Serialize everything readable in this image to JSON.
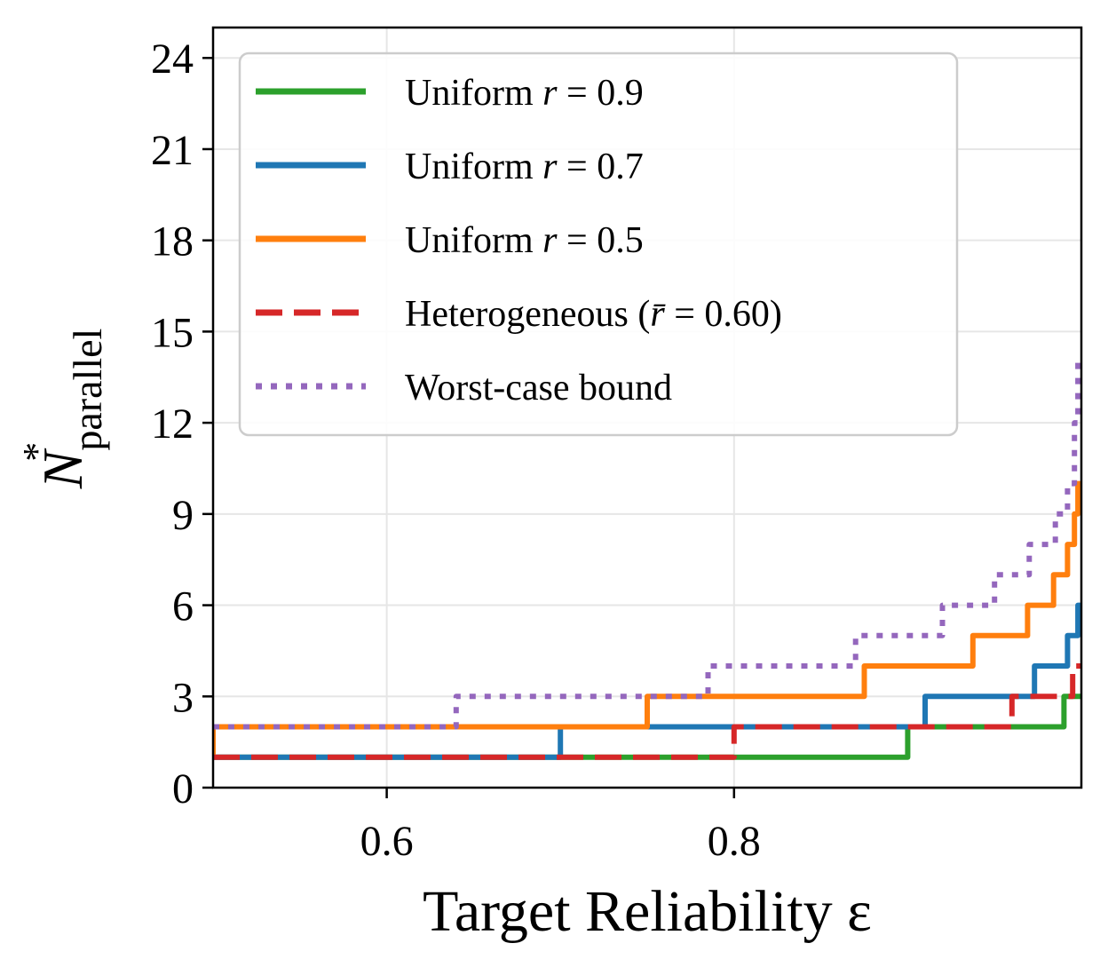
{
  "chart_data": {
    "type": "line",
    "title": "",
    "xlabel": "Target Reliability ε",
    "ylabel": "N*parallel",
    "ylabel_main": "N",
    "ylabel_sup": "*",
    "ylabel_sub": "parallel",
    "xlim": [
      0.5,
      1.0
    ],
    "ylim": [
      0,
      25
    ],
    "x_ticks": [
      0.6,
      0.8
    ],
    "x_tick_labels": [
      "0.6",
      "0.8"
    ],
    "y_ticks": [
      0,
      3,
      6,
      9,
      12,
      15,
      18,
      21,
      24
    ],
    "y_tick_labels": [
      "0",
      "3",
      "6",
      "9",
      "12",
      "15",
      "18",
      "21",
      "24"
    ],
    "grid": true,
    "legend_position": "top-left",
    "series": [
      {
        "name": "Uniform r = 0.9",
        "legend_main": "Uniform ",
        "legend_var": "r",
        "legend_rest": " = 0.9",
        "color": "#2ca02c",
        "style": "solid",
        "x": [
          0.5,
          0.9,
          0.9,
          0.99,
          0.99,
          1.0
        ],
        "y": [
          1,
          1,
          2,
          2,
          3,
          3
        ]
      },
      {
        "name": "Uniform r = 0.7",
        "legend_main": "Uniform ",
        "legend_var": "r",
        "legend_rest": " = 0.7",
        "color": "#1f77b4",
        "style": "solid",
        "x": [
          0.5,
          0.7,
          0.7,
          0.91,
          0.91,
          0.973,
          0.973,
          0.992,
          0.992,
          0.998,
          0.998,
          1.0
        ],
        "y": [
          1,
          1,
          2,
          2,
          3,
          3,
          4,
          4,
          5,
          5,
          6,
          6
        ]
      },
      {
        "name": "Uniform r = 0.5",
        "legend_main": "Uniform ",
        "legend_var": "r",
        "legend_rest": " = 0.5",
        "color": "#ff7f0e",
        "style": "solid",
        "x": [
          0.5,
          0.5,
          0.75,
          0.75,
          0.875,
          0.875,
          0.9375,
          0.9375,
          0.969,
          0.969,
          0.984,
          0.984,
          0.992,
          0.992,
          0.996,
          0.996,
          0.998,
          0.998,
          1.0
        ],
        "y": [
          1,
          2,
          2,
          3,
          3,
          4,
          4,
          5,
          5,
          6,
          6,
          7,
          7,
          8,
          8,
          9,
          9,
          10,
          10
        ]
      },
      {
        "name": "Heterogeneous (r̄ = 0.60)",
        "legend_main": "Heterogeneous (",
        "legend_var": "r̄",
        "legend_rest": " = 0.60)",
        "color": "#d62728",
        "style": "dashed",
        "x": [
          0.5,
          0.8,
          0.8,
          0.96,
          0.96,
          0.995,
          0.995,
          1.0
        ],
        "y": [
          1,
          1,
          2,
          2,
          3,
          3,
          4,
          4
        ]
      },
      {
        "name": "Worst-case bound",
        "legend_main": "Worst-case bound",
        "legend_var": "",
        "legend_rest": "",
        "color": "#9467bd",
        "style": "dotted",
        "x": [
          0.5,
          0.64,
          0.64,
          0.785,
          0.785,
          0.87,
          0.87,
          0.92,
          0.92,
          0.95,
          0.95,
          0.97,
          0.97,
          0.985,
          0.985,
          0.992,
          0.992,
          0.996,
          0.996,
          0.998,
          0.998,
          1.0
        ],
        "y": [
          2,
          2,
          3,
          3,
          4,
          4,
          5,
          5,
          6,
          6,
          7,
          7,
          8,
          8,
          9,
          9,
          10,
          10,
          12,
          12,
          14,
          14
        ]
      }
    ]
  }
}
